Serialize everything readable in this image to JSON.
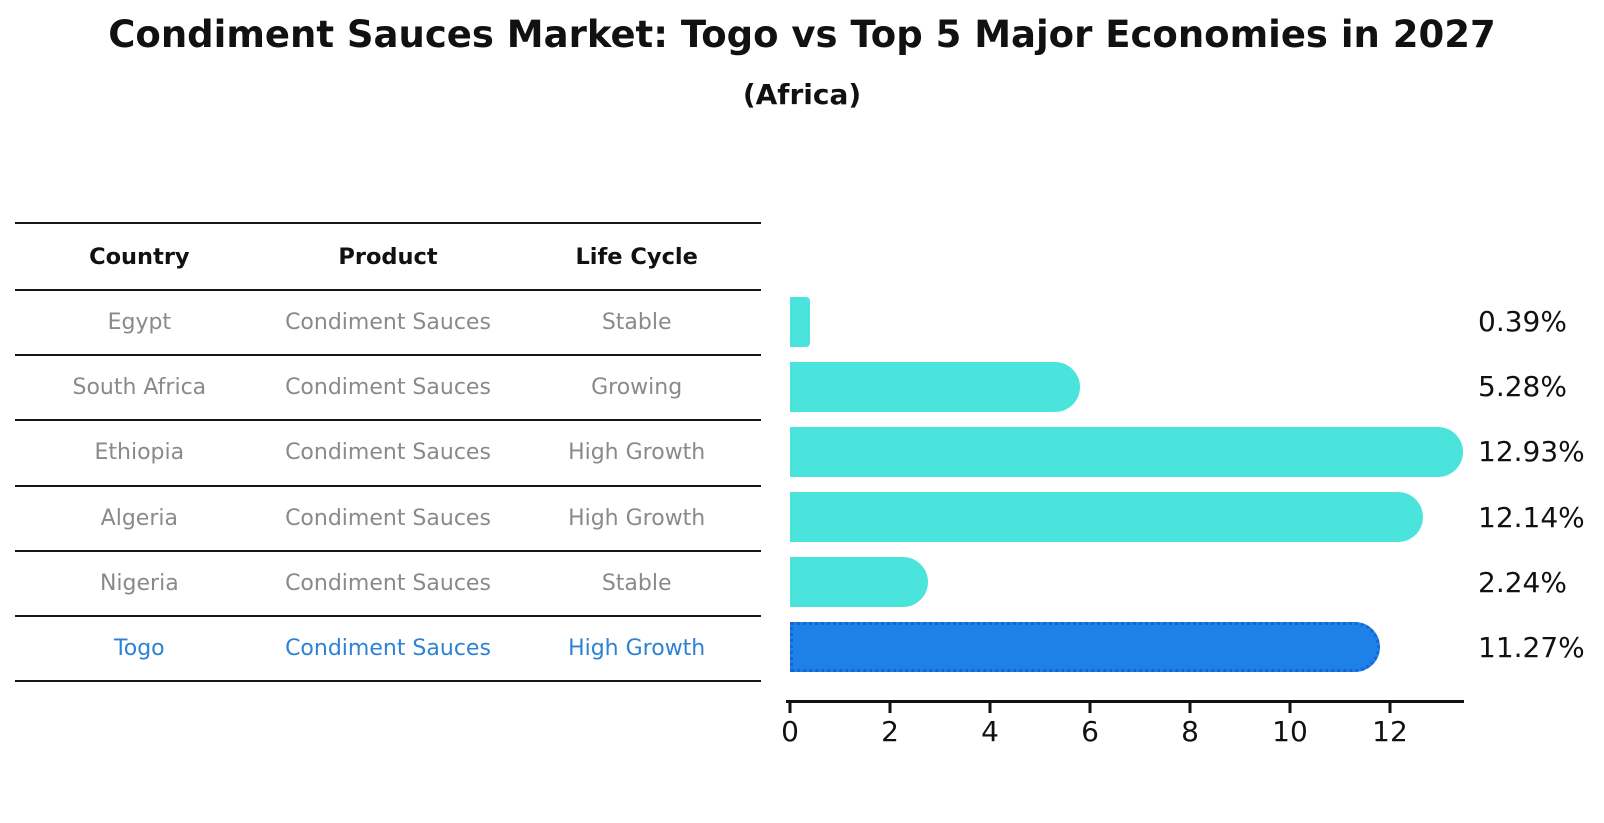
{
  "title": "Condiment Sauces Market: Togo vs Top 5 Major Economies in 2027",
  "subtitle": "(Africa)",
  "table": {
    "headers": {
      "country": "Country",
      "product": "Product",
      "life_cycle": "Life Cycle"
    },
    "rows": [
      {
        "country": "Egypt",
        "product": "Condiment Sauces",
        "life_cycle": "Stable"
      },
      {
        "country": "South Africa",
        "product": "Condiment Sauces",
        "life_cycle": "Growing"
      },
      {
        "country": "Ethiopia",
        "product": "Condiment Sauces",
        "life_cycle": "High Growth"
      },
      {
        "country": "Algeria",
        "product": "Condiment Sauces",
        "life_cycle": "High Growth"
      },
      {
        "country": "Nigeria",
        "product": "Condiment Sauces",
        "life_cycle": "Stable"
      },
      {
        "country": "Togo",
        "product": "Condiment Sauces",
        "life_cycle": "High Growth"
      }
    ],
    "highlight_row_index": 5
  },
  "chart_data": {
    "type": "bar",
    "orientation": "horizontal",
    "categories": [
      "Egypt",
      "South Africa",
      "Ethiopia",
      "Algeria",
      "Nigeria",
      "Togo"
    ],
    "values": [
      0.39,
      5.28,
      12.93,
      12.14,
      2.24,
      11.27
    ],
    "value_labels": [
      "0.39%",
      "5.28%",
      "12.93%",
      "12.14%",
      "2.24%",
      "11.27%"
    ],
    "x_ticks": [
      0,
      2,
      4,
      6,
      8,
      10,
      12
    ],
    "xlim": [
      0,
      13.4
    ],
    "grid": false,
    "legend": false,
    "bar_color": "#4be4dd",
    "highlight_bar_color": "#1e81e9",
    "highlight_bar_border_color": "#1565d2",
    "highlight_index": 5,
    "highlight_text_color": "#2e82d4",
    "row_text_color": "#8a8a8a",
    "label_text_color": "#111111"
  }
}
